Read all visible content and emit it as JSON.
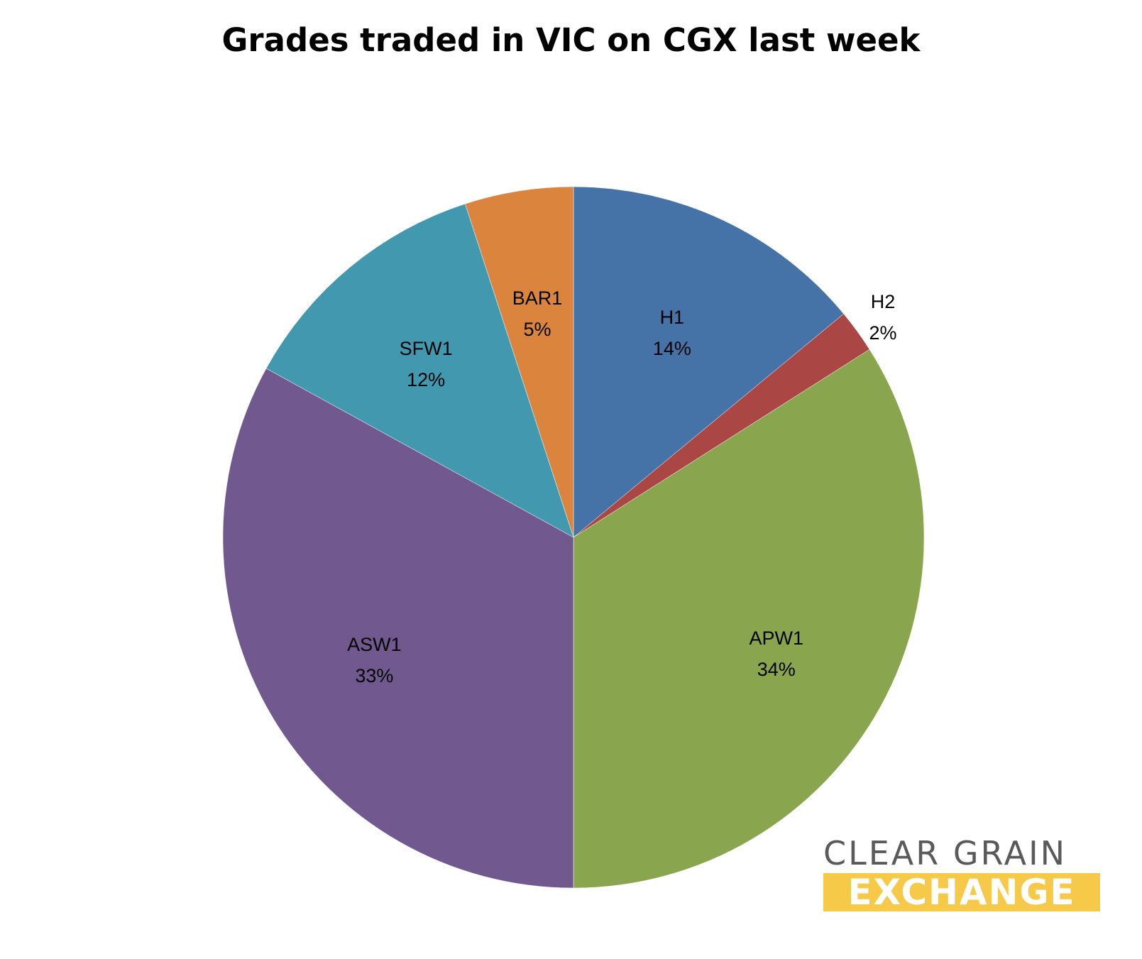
{
  "chart_data": {
    "type": "pie",
    "title": "Grades traded in VIC on CGX last week",
    "start_angle_deg": 0,
    "direction": "clockwise",
    "slices": [
      {
        "label": "H1",
        "value": 14,
        "pct_label": "14%",
        "color": "#4572A7"
      },
      {
        "label": "H2",
        "value": 2,
        "pct_label": "2%",
        "color": "#AA4643"
      },
      {
        "label": "APW1",
        "value": 34,
        "pct_label": "34%",
        "color": "#89A54E"
      },
      {
        "label": "ASW1",
        "value": 33,
        "pct_label": "33%",
        "color": "#71588F"
      },
      {
        "label": "SFW1",
        "value": 12,
        "pct_label": "12%",
        "color": "#4198AF"
      },
      {
        "label": "BAR1",
        "value": 5,
        "pct_label": "5%",
        "color": "#DB843D"
      }
    ]
  },
  "logo": {
    "line1": "CLEAR GRAIN",
    "line2": "EXCHANGE",
    "accent_color": "#F6C948"
  }
}
